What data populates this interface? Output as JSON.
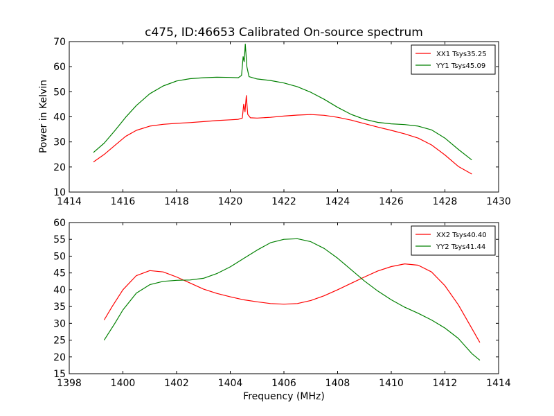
{
  "figure": {
    "title": "c475, ID:46653 Calibrated On-source spectrum",
    "xlabel": "Frequency (MHz)",
    "ylabel": "Power in Kelvin"
  },
  "chart_data": [
    {
      "type": "line",
      "xlim": [
        1414,
        1430
      ],
      "ylim": [
        10,
        70
      ],
      "xticks": [
        1414,
        1416,
        1418,
        1420,
        1422,
        1424,
        1426,
        1428,
        1430
      ],
      "yticks": [
        10,
        20,
        30,
        40,
        50,
        60,
        70
      ],
      "legend_position": "top-right",
      "grid": false,
      "series": [
        {
          "name": "XX1 Tsys35.25",
          "color": "#ff0000",
          "points": [
            [
              1414.9,
              22.0
            ],
            [
              1415.3,
              25.0
            ],
            [
              1415.7,
              28.6
            ],
            [
              1416.1,
              32.2
            ],
            [
              1416.5,
              34.6
            ],
            [
              1417.0,
              36.3
            ],
            [
              1417.5,
              37.0
            ],
            [
              1418.0,
              37.4
            ],
            [
              1418.5,
              37.7
            ],
            [
              1419.0,
              38.1
            ],
            [
              1419.5,
              38.5
            ],
            [
              1420.0,
              38.8
            ],
            [
              1420.3,
              39.0
            ],
            [
              1420.45,
              39.5
            ],
            [
              1420.5,
              45.0
            ],
            [
              1420.55,
              42.0
            ],
            [
              1420.6,
              48.5
            ],
            [
              1420.65,
              41.0
            ],
            [
              1420.75,
              39.6
            ],
            [
              1421.0,
              39.5
            ],
            [
              1421.5,
              39.8
            ],
            [
              1422.0,
              40.3
            ],
            [
              1422.5,
              40.7
            ],
            [
              1423.0,
              40.9
            ],
            [
              1423.5,
              40.6
            ],
            [
              1424.0,
              39.8
            ],
            [
              1424.5,
              38.7
            ],
            [
              1425.0,
              37.3
            ],
            [
              1425.5,
              35.9
            ],
            [
              1426.0,
              34.6
            ],
            [
              1426.5,
              33.2
            ],
            [
              1427.0,
              31.5
            ],
            [
              1427.5,
              28.8
            ],
            [
              1428.0,
              24.8
            ],
            [
              1428.5,
              20.2
            ],
            [
              1429.0,
              17.2
            ]
          ]
        },
        {
          "name": "YY1 Tsys45.09",
          "color": "#008000",
          "points": [
            [
              1414.9,
              25.8
            ],
            [
              1415.3,
              29.5
            ],
            [
              1415.7,
              34.5
            ],
            [
              1416.1,
              39.8
            ],
            [
              1416.5,
              44.5
            ],
            [
              1417.0,
              49.2
            ],
            [
              1417.5,
              52.3
            ],
            [
              1418.0,
              54.3
            ],
            [
              1418.5,
              55.2
            ],
            [
              1419.0,
              55.6
            ],
            [
              1419.5,
              55.8
            ],
            [
              1420.0,
              55.7
            ],
            [
              1420.3,
              55.6
            ],
            [
              1420.42,
              56.5
            ],
            [
              1420.48,
              64.0
            ],
            [
              1420.52,
              62.0
            ],
            [
              1420.56,
              69.0
            ],
            [
              1420.62,
              60.0
            ],
            [
              1420.7,
              56.0
            ],
            [
              1421.0,
              55.1
            ],
            [
              1421.5,
              54.5
            ],
            [
              1422.0,
              53.5
            ],
            [
              1422.5,
              52.0
            ],
            [
              1423.0,
              49.8
            ],
            [
              1423.5,
              47.0
            ],
            [
              1424.0,
              43.8
            ],
            [
              1424.5,
              41.0
            ],
            [
              1425.0,
              39.0
            ],
            [
              1425.5,
              37.8
            ],
            [
              1426.0,
              37.2
            ],
            [
              1426.5,
              36.9
            ],
            [
              1427.0,
              36.3
            ],
            [
              1427.5,
              34.8
            ],
            [
              1428.0,
              31.5
            ],
            [
              1428.5,
              27.0
            ],
            [
              1429.0,
              22.8
            ]
          ]
        }
      ]
    },
    {
      "type": "line",
      "xlim": [
        1398,
        1414
      ],
      "ylim": [
        15,
        60
      ],
      "xticks": [
        1398,
        1400,
        1402,
        1404,
        1406,
        1408,
        1410,
        1412,
        1414
      ],
      "yticks": [
        15,
        20,
        25,
        30,
        35,
        40,
        45,
        50,
        55,
        60
      ],
      "legend_position": "top-right",
      "grid": false,
      "series": [
        {
          "name": "XX2 Tsys40.40",
          "color": "#ff0000",
          "points": [
            [
              1399.3,
              31.0
            ],
            [
              1399.6,
              35.0
            ],
            [
              1400.0,
              40.0
            ],
            [
              1400.5,
              44.2
            ],
            [
              1401.0,
              45.7
            ],
            [
              1401.5,
              45.3
            ],
            [
              1402.0,
              43.8
            ],
            [
              1402.5,
              42.0
            ],
            [
              1403.0,
              40.2
            ],
            [
              1403.5,
              38.9
            ],
            [
              1404.0,
              37.9
            ],
            [
              1404.5,
              37.0
            ],
            [
              1405.0,
              36.4
            ],
            [
              1405.5,
              35.9
            ],
            [
              1406.0,
              35.7
            ],
            [
              1406.5,
              35.9
            ],
            [
              1407.0,
              36.8
            ],
            [
              1407.5,
              38.2
            ],
            [
              1408.0,
              40.0
            ],
            [
              1408.5,
              41.9
            ],
            [
              1409.0,
              43.8
            ],
            [
              1409.5,
              45.6
            ],
            [
              1410.0,
              46.9
            ],
            [
              1410.5,
              47.7
            ],
            [
              1411.0,
              47.3
            ],
            [
              1411.5,
              45.3
            ],
            [
              1412.0,
              41.2
            ],
            [
              1412.5,
              35.5
            ],
            [
              1413.0,
              28.5
            ],
            [
              1413.3,
              24.3
            ]
          ]
        },
        {
          "name": "YY2 Tsys41.44",
          "color": "#008000",
          "points": [
            [
              1399.3,
              25.0
            ],
            [
              1399.7,
              30.0
            ],
            [
              1400.0,
              34.0
            ],
            [
              1400.5,
              39.0
            ],
            [
              1401.0,
              41.5
            ],
            [
              1401.5,
              42.5
            ],
            [
              1402.0,
              42.8
            ],
            [
              1402.5,
              42.9
            ],
            [
              1403.0,
              43.4
            ],
            [
              1403.5,
              44.8
            ],
            [
              1404.0,
              46.8
            ],
            [
              1404.5,
              49.3
            ],
            [
              1405.0,
              51.8
            ],
            [
              1405.5,
              54.0
            ],
            [
              1406.0,
              55.0
            ],
            [
              1406.5,
              55.2
            ],
            [
              1407.0,
              54.3
            ],
            [
              1407.5,
              52.3
            ],
            [
              1408.0,
              49.4
            ],
            [
              1408.5,
              46.0
            ],
            [
              1409.0,
              42.6
            ],
            [
              1409.5,
              39.6
            ],
            [
              1410.0,
              37.0
            ],
            [
              1410.5,
              34.8
            ],
            [
              1411.0,
              33.0
            ],
            [
              1411.5,
              31.0
            ],
            [
              1412.0,
              28.6
            ],
            [
              1412.5,
              25.5
            ],
            [
              1413.0,
              21.0
            ],
            [
              1413.3,
              19.0
            ]
          ]
        }
      ]
    }
  ]
}
